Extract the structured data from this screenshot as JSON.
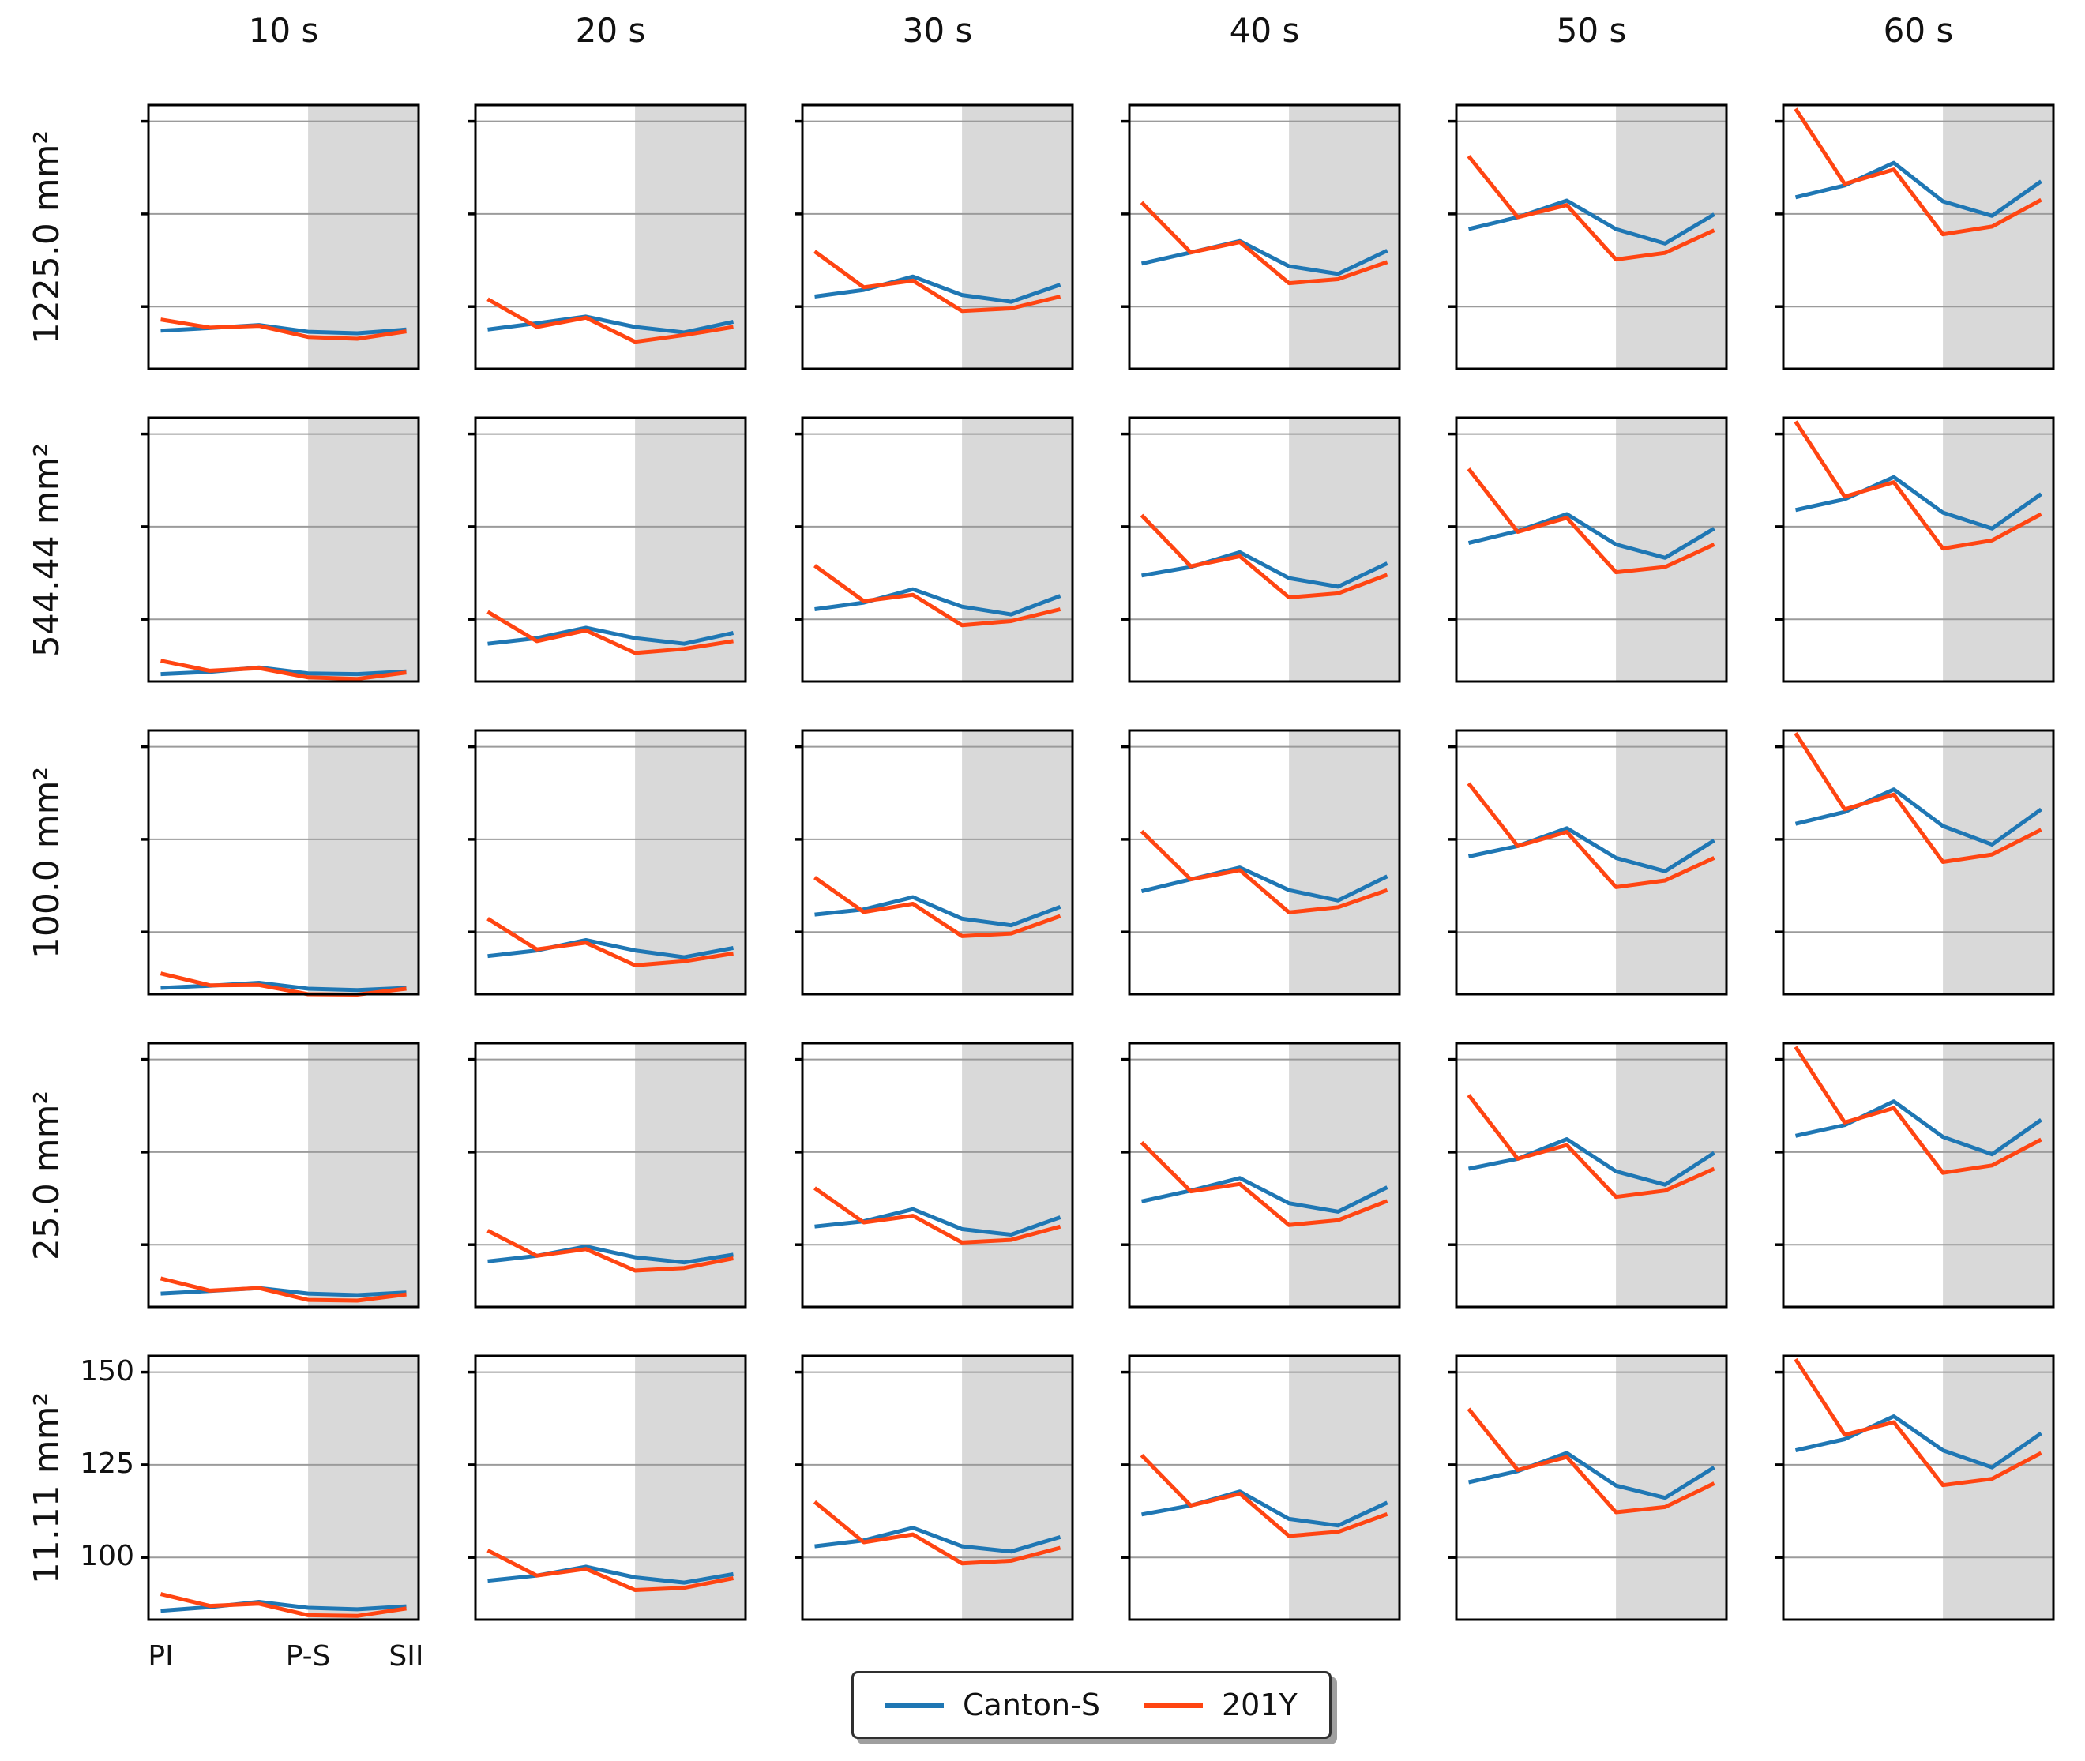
{
  "chart_data": {
    "type": "line",
    "title": "",
    "xlabel": "",
    "ylabel": "",
    "col_titles": [
      "10 s",
      "20 s",
      "30 s",
      "40 s",
      "50 s",
      "60 s"
    ],
    "row_labels": [
      "1225.0 mm²",
      "544.44 mm²",
      "100.0 mm²",
      "25.0 mm²",
      "11.11 mm²"
    ],
    "x_categories": [
      "PI",
      "",
      "",
      "P-S",
      "",
      "SII"
    ],
    "x_tick_labels": [
      "PI",
      "P-S",
      "SII"
    ],
    "x_tick_positions": [
      0,
      3,
      5
    ],
    "x_positions": [
      0,
      1,
      2,
      3,
      4,
      5
    ],
    "xlim": [
      -0.25,
      5.25
    ],
    "ylim": [
      83.2,
      154.4
    ],
    "yticks": [
      100,
      125,
      150
    ],
    "ytick_labels": [
      "100",
      "125",
      "150"
    ],
    "grid": "horizontal",
    "shade_span_x": [
      3,
      5.25
    ],
    "shade_color": "#d9d9d9",
    "grid_color": "#9b9b9b",
    "spine_color": "#000000",
    "series": [
      {
        "name": "Canton-S",
        "color": "#1f77b4"
      },
      {
        "name": "201Y",
        "color": "#ff4512"
      }
    ],
    "legend_position": "lower center",
    "panels": [
      {
        "row": "1225.0 mm²",
        "cells": [
          {
            "col": "10 s",
            "canton_s": [
              93.5,
              94.2,
              95.0,
              93.2,
              92.8,
              93.8
            ],
            "y201": [
              96.5,
              94.3,
              94.8,
              91.8,
              91.3,
              93.3
            ]
          },
          {
            "col": "20 s",
            "canton_s": [
              93.8,
              95.5,
              97.3,
              94.5,
              93.0,
              95.9
            ],
            "y201": [
              102.0,
              94.5,
              97.0,
              90.5,
              92.3,
              94.5
            ]
          },
          {
            "col": "30 s",
            "canton_s": [
              102.7,
              104.5,
              108.1,
              103.1,
              101.3,
              105.9
            ],
            "y201": [
              114.9,
              105.2,
              107.0,
              98.8,
              99.5,
              102.7
            ]
          },
          {
            "col": "40 s",
            "canton_s": [
              111.6,
              114.6,
              117.7,
              110.9,
              108.8,
              115.1
            ],
            "y201": [
              128.1,
              114.6,
              117.4,
              106.3,
              107.4,
              112.0
            ]
          },
          {
            "col": "50 s",
            "canton_s": [
              120.9,
              124.1,
              128.6,
              120.9,
              117.0,
              124.9
            ],
            "y201": [
              140.6,
              124.1,
              127.4,
              112.7,
              114.5,
              120.6
            ]
          },
          {
            "col": "60 s",
            "canton_s": [
              129.5,
              132.7,
              138.8,
              128.4,
              124.5,
              133.8
            ],
            "y201": [
              153.4,
              133.1,
              137.0,
              119.5,
              121.6,
              128.8
            ]
          }
        ]
      },
      {
        "row": "544.44 mm²",
        "cells": [
          {
            "col": "10 s",
            "canton_s": [
              85.2,
              85.8,
              87.0,
              85.4,
              85.2,
              85.9
            ],
            "y201": [
              88.8,
              86.1,
              86.8,
              84.3,
              83.9,
              85.6
            ]
          },
          {
            "col": "20 s",
            "canton_s": [
              93.4,
              94.9,
              97.7,
              94.9,
              93.4,
              96.3
            ],
            "y201": [
              102.0,
              94.1,
              97.0,
              90.9,
              92.0,
              94.1
            ]
          },
          {
            "col": "30 s",
            "canton_s": [
              102.7,
              104.5,
              108.1,
              103.4,
              101.3,
              106.3
            ],
            "y201": [
              114.5,
              104.9,
              106.6,
              98.4,
              99.5,
              102.7
            ]
          },
          {
            "col": "40 s",
            "canton_s": [
              111.8,
              114.1,
              118.1,
              111.1,
              108.8,
              115.1
            ],
            "y201": [
              128.1,
              114.3,
              117.0,
              105.9,
              107.0,
              112.0
            ]
          },
          {
            "col": "50 s",
            "canton_s": [
              120.6,
              123.8,
              128.4,
              120.2,
              116.6,
              124.5
            ],
            "y201": [
              140.6,
              123.6,
              127.4,
              112.7,
              114.1,
              120.2
            ]
          },
          {
            "col": "60 s",
            "canton_s": [
              129.5,
              132.4,
              138.4,
              128.8,
              124.5,
              133.8
            ],
            "y201": [
              153.4,
              133.1,
              137.0,
              119.1,
              121.3,
              128.4
            ]
          }
        ]
      },
      {
        "row": "100.0 mm²",
        "cells": [
          {
            "col": "10 s",
            "canton_s": [
              84.9,
              85.5,
              86.3,
              84.7,
              84.3,
              84.9
            ],
            "y201": [
              88.8,
              85.6,
              85.7,
              83.2,
              83.1,
              84.7
            ]
          },
          {
            "col": "20 s",
            "canton_s": [
              93.5,
              95.0,
              97.8,
              95.0,
              93.2,
              95.7
            ],
            "y201": [
              103.6,
              95.3,
              97.1,
              91.0,
              92.1,
              94.2
            ]
          },
          {
            "col": "30 s",
            "canton_s": [
              104.7,
              106.1,
              109.4,
              103.6,
              101.8,
              106.8
            ],
            "y201": [
              114.7,
              105.4,
              107.6,
              98.9,
              99.6,
              104.3
            ]
          },
          {
            "col": "40 s",
            "canton_s": [
              111.0,
              114.2,
              117.4,
              111.3,
              108.5,
              115.0
            ],
            "y201": [
              127.2,
              114.2,
              116.7,
              105.3,
              106.7,
              111.3
            ]
          },
          {
            "col": "50 s",
            "canton_s": [
              120.4,
              123.2,
              128.0,
              120.0,
              116.4,
              124.7
            ],
            "y201": [
              140.1,
              123.2,
              127.0,
              112.1,
              113.9,
              120.0
            ]
          },
          {
            "col": "60 s",
            "canton_s": [
              129.2,
              132.4,
              138.5,
              128.6,
              123.6,
              133.1
            ],
            "y201": [
              153.7,
              133.1,
              137.1,
              118.9,
              120.9,
              127.6
            ]
          }
        ]
      },
      {
        "row": "25.0 mm²",
        "cells": [
          {
            "col": "10 s",
            "canton_s": [
              86.8,
              87.5,
              88.3,
              86.8,
              86.4,
              87.1
            ],
            "y201": [
              90.9,
              87.6,
              88.3,
              85.1,
              84.9,
              86.6
            ]
          },
          {
            "col": "20 s",
            "canton_s": [
              95.5,
              97.0,
              99.5,
              96.6,
              95.2,
              97.3
            ],
            "y201": [
              103.8,
              97.0,
              98.8,
              93.0,
              93.7,
              96.3
            ]
          },
          {
            "col": "30 s",
            "canton_s": [
              104.9,
              106.3,
              109.6,
              104.2,
              102.7,
              107.4
            ],
            "y201": [
              115.3,
              106.0,
              107.8,
              100.6,
              101.3,
              104.9
            ]
          },
          {
            "col": "40 s",
            "canton_s": [
              111.7,
              114.6,
              118.0,
              111.2,
              108.9,
              115.5
            ],
            "y201": [
              127.6,
              114.4,
              116.4,
              105.3,
              106.6,
              111.8
            ]
          },
          {
            "col": "50 s",
            "canton_s": [
              120.5,
              123.2,
              128.5,
              119.8,
              116.2,
              124.8
            ],
            "y201": [
              140.4,
              123.2,
              126.9,
              112.9,
              114.6,
              120.5
            ]
          },
          {
            "col": "60 s",
            "canton_s": [
              129.4,
              132.3,
              138.7,
              129.1,
              124.4,
              133.7
            ],
            "y201": [
              153.4,
              133.0,
              136.9,
              119.4,
              121.4,
              128.4
            ]
          }
        ]
      },
      {
        "row": "11.11 mm²",
        "cells": [
          {
            "col": "10 s",
            "canton_s": [
              85.6,
              86.6,
              88.0,
              86.4,
              86.0,
              86.8
            ],
            "y201": [
              90.1,
              86.9,
              87.5,
              84.4,
              84.2,
              86.2
            ]
          },
          {
            "col": "20 s",
            "canton_s": [
              93.7,
              95.1,
              97.5,
              94.6,
              93.2,
              95.5
            ],
            "y201": [
              101.9,
              95.1,
              96.9,
              91.2,
              91.8,
              94.4
            ]
          },
          {
            "col": "30 s",
            "canton_s": [
              103.0,
              104.6,
              108.0,
              103.0,
              101.6,
              105.5
            ],
            "y201": [
              115.0,
              104.1,
              106.2,
              98.4,
              99.1,
              102.6
            ]
          },
          {
            "col": "40 s",
            "canton_s": [
              111.6,
              114.0,
              117.8,
              110.4,
              108.6,
              114.8
            ],
            "y201": [
              127.6,
              114.0,
              117.2,
              105.8,
              106.9,
              111.7
            ]
          },
          {
            "col": "50 s",
            "canton_s": [
              120.3,
              123.3,
              128.2,
              119.4,
              116.1,
              124.3
            ],
            "y201": [
              140.1,
              123.6,
              127.1,
              112.2,
              113.6,
              120.0
            ]
          },
          {
            "col": "60 s",
            "canton_s": [
              128.9,
              131.9,
              138.1,
              128.9,
              124.3,
              133.5
            ],
            "y201": [
              153.5,
              133.1,
              136.5,
              119.5,
              121.2,
              128.2
            ]
          }
        ]
      }
    ]
  },
  "legend": {
    "items": [
      {
        "label": "Canton-S",
        "color": "#1f77b4"
      },
      {
        "label": "201Y",
        "color": "#ff4512"
      }
    ]
  }
}
